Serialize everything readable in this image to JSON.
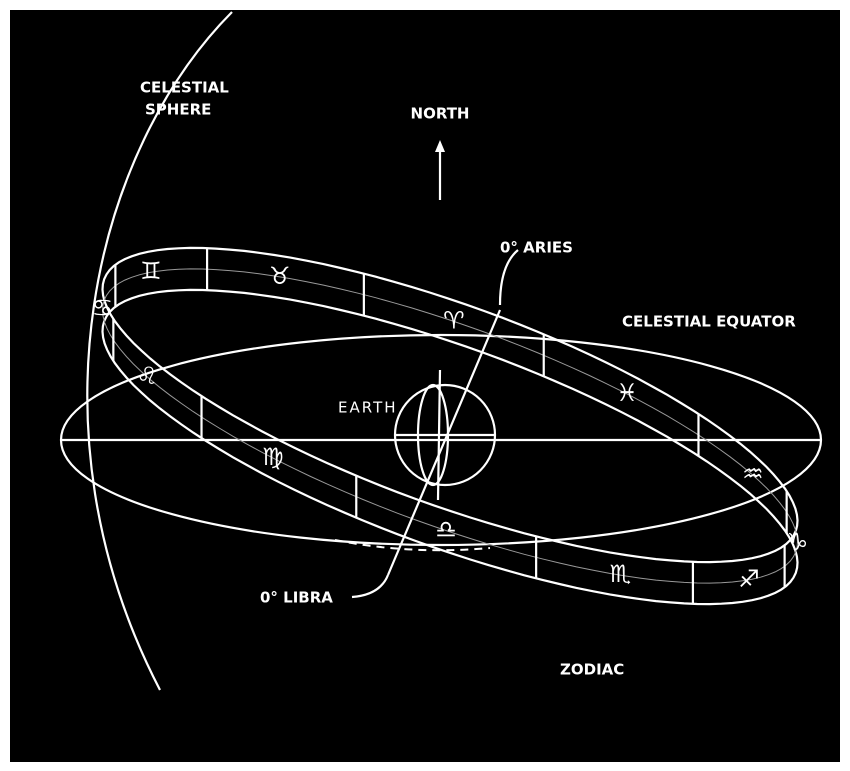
{
  "labels": {
    "celestial_sphere": [
      "CELESTIAL",
      "SPHERE"
    ],
    "north": "NORTH",
    "aries": "0° ARIES",
    "celestial_equator": "CELESTIAL EQUATOR",
    "earth": "EARTH",
    "libra": "0° LIBRA",
    "zodiac": "ZODIAC"
  },
  "zodiac_signs": [
    "♊",
    "♉",
    "♈",
    "♓",
    "♒",
    "♑",
    "♐",
    "♏",
    "♎",
    "♍",
    "♌",
    "♋"
  ]
}
